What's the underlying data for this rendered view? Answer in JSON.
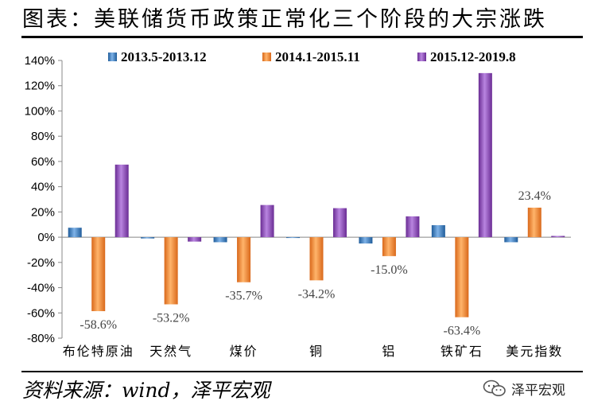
{
  "title": "图表：美联储货币政策正常化三个阶段的大宗涨跌",
  "source": "资料来源：wind，泽平宏观",
  "watermark": "泽平宏观",
  "watermark_icon": "wechat-icon",
  "chart_data": {
    "type": "bar",
    "categories": [
      "布伦特原油",
      "天然气",
      "煤价",
      "铜",
      "铝",
      "铁矿石",
      "美元指数"
    ],
    "series": [
      {
        "name": "2013.5-2013.12",
        "color": "#3A7DC2",
        "values": [
          7.5,
          -1.0,
          -4.0,
          -0.5,
          -5.0,
          9.5,
          -4.0
        ]
      },
      {
        "name": "2014.1-2015.11",
        "color": "#F0892F",
        "values": [
          -58.6,
          -53.2,
          -35.7,
          -34.2,
          -15.0,
          -63.4,
          23.4
        ]
      },
      {
        "name": "2015.12-2019.8",
        "color": "#8B45B8",
        "values": [
          57.5,
          -3.5,
          25.5,
          23.0,
          16.5,
          130.0,
          1.0
        ]
      }
    ],
    "data_labels": [
      {
        "category": "布伦特原油",
        "series": "2014.1-2015.11",
        "text": "-58.6%"
      },
      {
        "category": "天然气",
        "series": "2014.1-2015.11",
        "text": "-53.2%"
      },
      {
        "category": "煤价",
        "series": "2014.1-2015.11",
        "text": "-35.7%"
      },
      {
        "category": "铜",
        "series": "2014.1-2015.11",
        "text": "-34.2%"
      },
      {
        "category": "铝",
        "series": "2014.1-2015.11",
        "text": "-15.0%"
      },
      {
        "category": "铁矿石",
        "series": "2014.1-2015.11",
        "text": "-63.4%"
      },
      {
        "category": "美元指数",
        "series": "2014.1-2015.11",
        "text": "23.4%"
      }
    ],
    "yticks": [
      "140%",
      "120%",
      "100%",
      "80%",
      "60%",
      "40%",
      "20%",
      "0%",
      "-20%",
      "-40%",
      "-60%",
      "-80%"
    ],
    "ylim": [
      -80,
      140
    ],
    "ytick_step": 20,
    "grid": false,
    "legend": "top"
  }
}
